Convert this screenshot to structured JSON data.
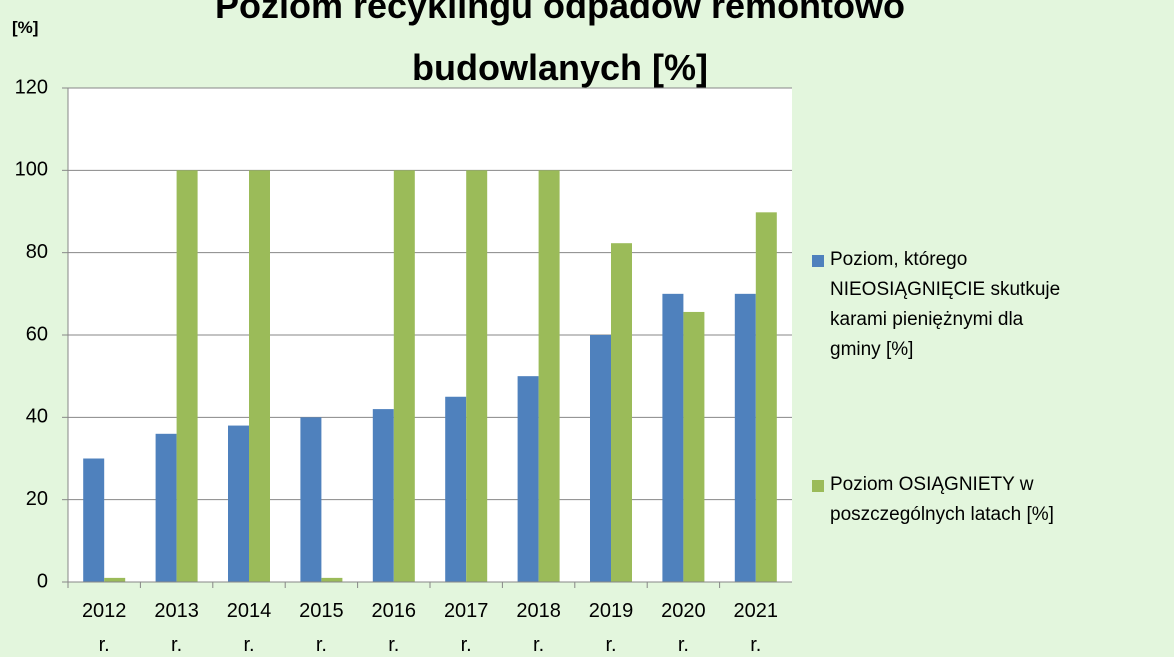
{
  "chart_data": {
    "type": "bar",
    "title": "Poziom recyklingu odpadów remontowo budowlanych [%]",
    "y_label": "[%]",
    "categories": [
      "2012 r.",
      "2013 r.",
      "2014 r.",
      "2015 r.",
      "2016 r.",
      "2017 r.",
      "2018 r.",
      "2019 r.",
      "2020 r.",
      "2021 r."
    ],
    "series": [
      {
        "name": "Poziom, którego NIEOSIĄGNIĘCIE skutkuje karami pieniężnymi dla gminy [%]",
        "color": "#4f81bd",
        "values": [
          30,
          36,
          38,
          40,
          42,
          45,
          50,
          60,
          70,
          70
        ]
      },
      {
        "name": "Poziom OSIĄGNIETY w poszczególnych latach [%]",
        "color": "#9bbb59",
        "values": [
          1,
          100,
          100,
          1,
          100,
          100,
          100,
          82.3,
          65.6,
          89.8
        ]
      }
    ],
    "ylim": [
      0,
      120
    ],
    "yticks": [
      0,
      20,
      40,
      60,
      80,
      100,
      120
    ],
    "grid": true,
    "legend": "right"
  }
}
